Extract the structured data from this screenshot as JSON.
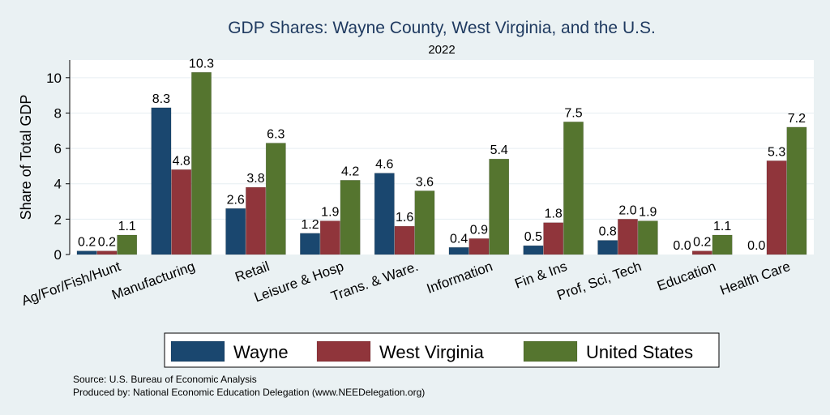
{
  "chart_data": {
    "type": "bar",
    "title": "GDP Shares: Wayne County, West Virginia, and the U.S.",
    "subtitle": "2022",
    "ylabel": "Share of Total GDP",
    "xlabel": "",
    "ylim": [
      0,
      11
    ],
    "yticks": [
      0,
      2,
      4,
      6,
      8,
      10
    ],
    "grid": true,
    "legend_position": "bottom",
    "categories": [
      "Ag/For/Fish/Hunt",
      "Manufacturing",
      "Retail",
      "Leisure & Hosp",
      "Trans. & Ware.",
      "Information",
      "Fin & Ins",
      "Prof, Sci, Tech",
      "Education",
      "Health Care"
    ],
    "series": [
      {
        "name": "Wayne",
        "color": "#1a476f",
        "values": [
          0.2,
          8.3,
          2.6,
          1.2,
          4.6,
          0.4,
          0.5,
          0.8,
          0.0,
          0.0
        ],
        "labels": [
          "0.2",
          "8.3",
          "2.6",
          "1.2",
          "4.6",
          "0.4",
          "0.5",
          "0.8",
          "0.0",
          "0.0"
        ]
      },
      {
        "name": "West Virginia",
        "color": "#90353b",
        "values": [
          0.2,
          4.8,
          3.8,
          1.9,
          1.6,
          0.9,
          1.8,
          2.0,
          0.2,
          5.3
        ],
        "labels": [
          "0.2",
          "4.8",
          "3.8",
          "1.9",
          "1.6",
          "0.9",
          "1.8",
          "2.0",
          "0.2",
          "5.3"
        ]
      },
      {
        "name": "United States",
        "color": "#55752f",
        "values": [
          1.1,
          10.3,
          6.3,
          4.2,
          3.6,
          5.4,
          7.5,
          1.9,
          1.1,
          7.2
        ],
        "labels": [
          "1.1",
          "10.3",
          "6.3",
          "4.2",
          "3.6",
          "5.4",
          "7.5",
          "1.9",
          "1.1",
          "7.2"
        ]
      }
    ]
  },
  "notes": {
    "source": "Source: U.S. Bureau of Economic Analysis",
    "produced": "Produced by: National Economic Education Delegation (www.NEEDelegation.org)"
  }
}
